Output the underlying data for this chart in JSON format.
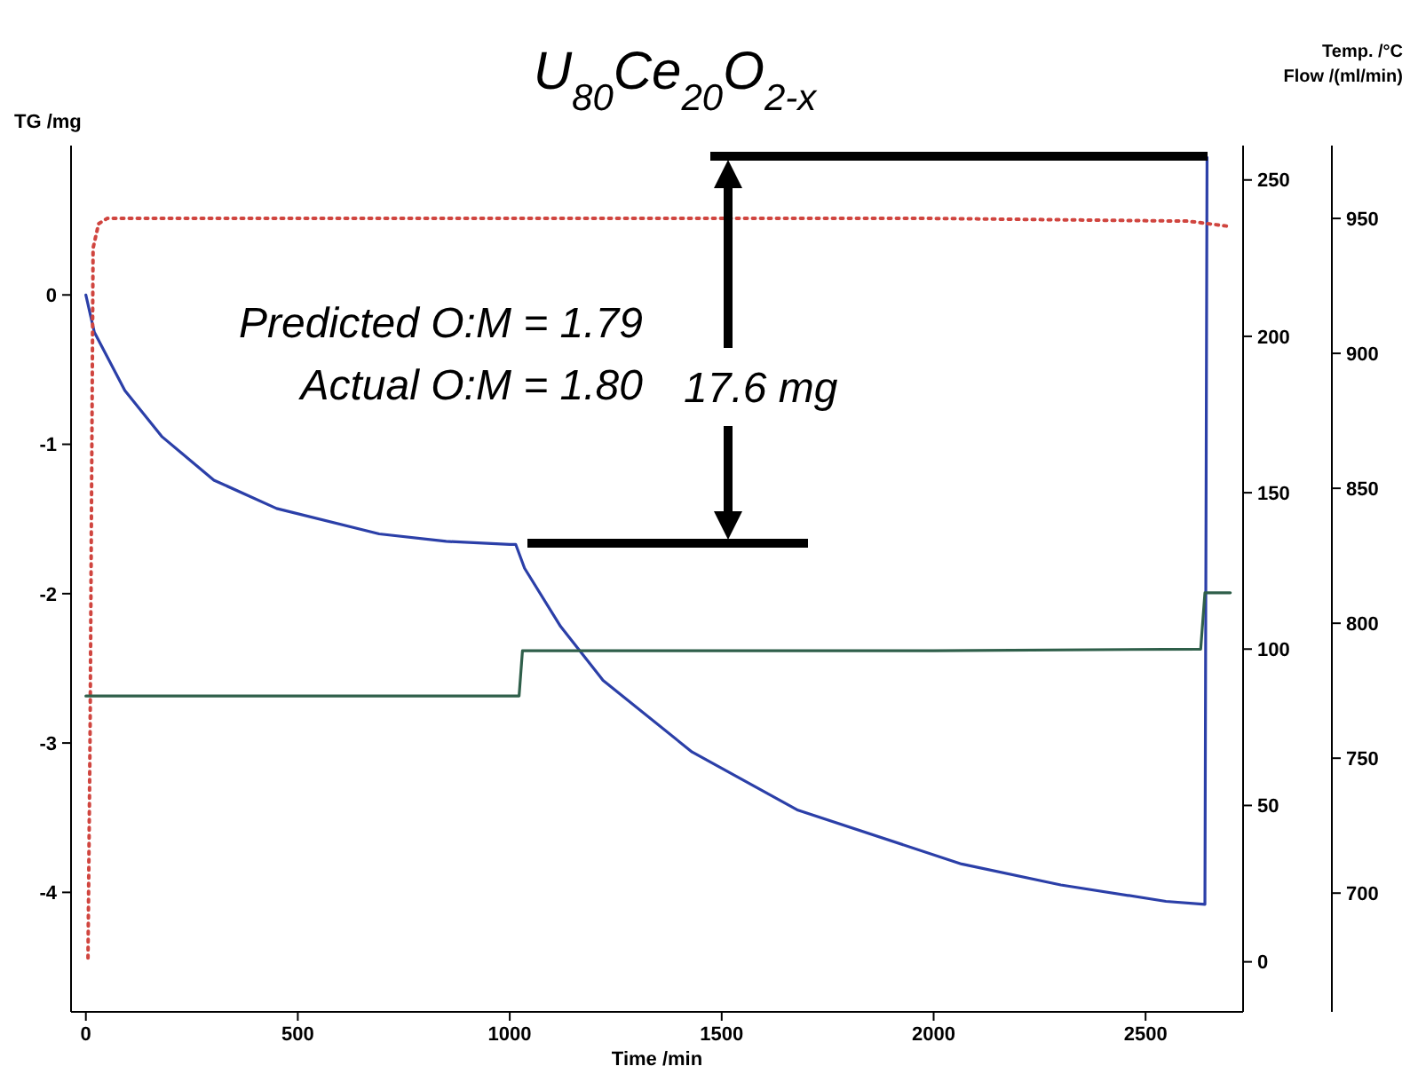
{
  "chart_data": {
    "type": "line",
    "title": "U$_{80}$Ce$_{20}$O$_{2-x}$",
    "xlabel": "Time /min",
    "ylabel": "TG /mg",
    "y2label": "Flow /(ml/min)",
    "y3label": "Temp. /°C",
    "xlim": [
      -35,
      2730
    ],
    "xticks": [
      0,
      500,
      1000,
      1500,
      2000,
      2500
    ],
    "ylim": [
      -4.8,
      1.0
    ],
    "yticks": [
      -4,
      -3,
      -2,
      -1,
      0
    ],
    "y2lim": [
      -16,
      261
    ],
    "y2ticks": [
      0,
      50,
      100,
      150,
      200,
      250
    ],
    "y3lim": [
      656,
      977
    ],
    "y3ticks": [
      700,
      750,
      800,
      850,
      900,
      950
    ],
    "marker": "none",
    "series": [
      {
        "color": "#2b3fa8",
        "x": [
          0,
          20,
          92,
          180,
          302,
          450,
          692,
          850,
          1000,
          1014,
          1035,
          1120,
          1220,
          1430,
          1680,
          2066,
          2300,
          2548,
          2640,
          2645
        ],
        "values": [
          0,
          -0.25,
          -0.64,
          -0.95,
          -1.24,
          -1.43,
          -1.6,
          -1.65,
          -1.67,
          -1.67,
          -1.83,
          -2.22,
          -2.58,
          -3.06,
          -3.45,
          -3.81,
          -3.95,
          -4.06,
          -4.08,
          0.92
        ]
      },
      {
        "color": "#d0453f",
        "axis": "y3",
        "line_style": "dotted",
        "x": [
          5,
          10,
          17,
          30,
          50,
          1000,
          2000,
          2600,
          2700
        ],
        "values": [
          676,
          760,
          939,
          948,
          950,
          950,
          950,
          949,
          947
        ]
      },
      {
        "color": "#2f5f4a",
        "axis": "y2",
        "x": [
          0,
          500,
          1000,
          1022,
          1030,
          2000,
          2630,
          2640,
          2700
        ],
        "values": [
          85,
          85,
          85,
          85,
          99.5,
          99.5,
          100,
          118,
          118
        ]
      }
    ],
    "annotations": [
      "Predicted O:M = 1.79",
      "Actual O:M = 1.80",
      "17.6 mg"
    ]
  }
}
